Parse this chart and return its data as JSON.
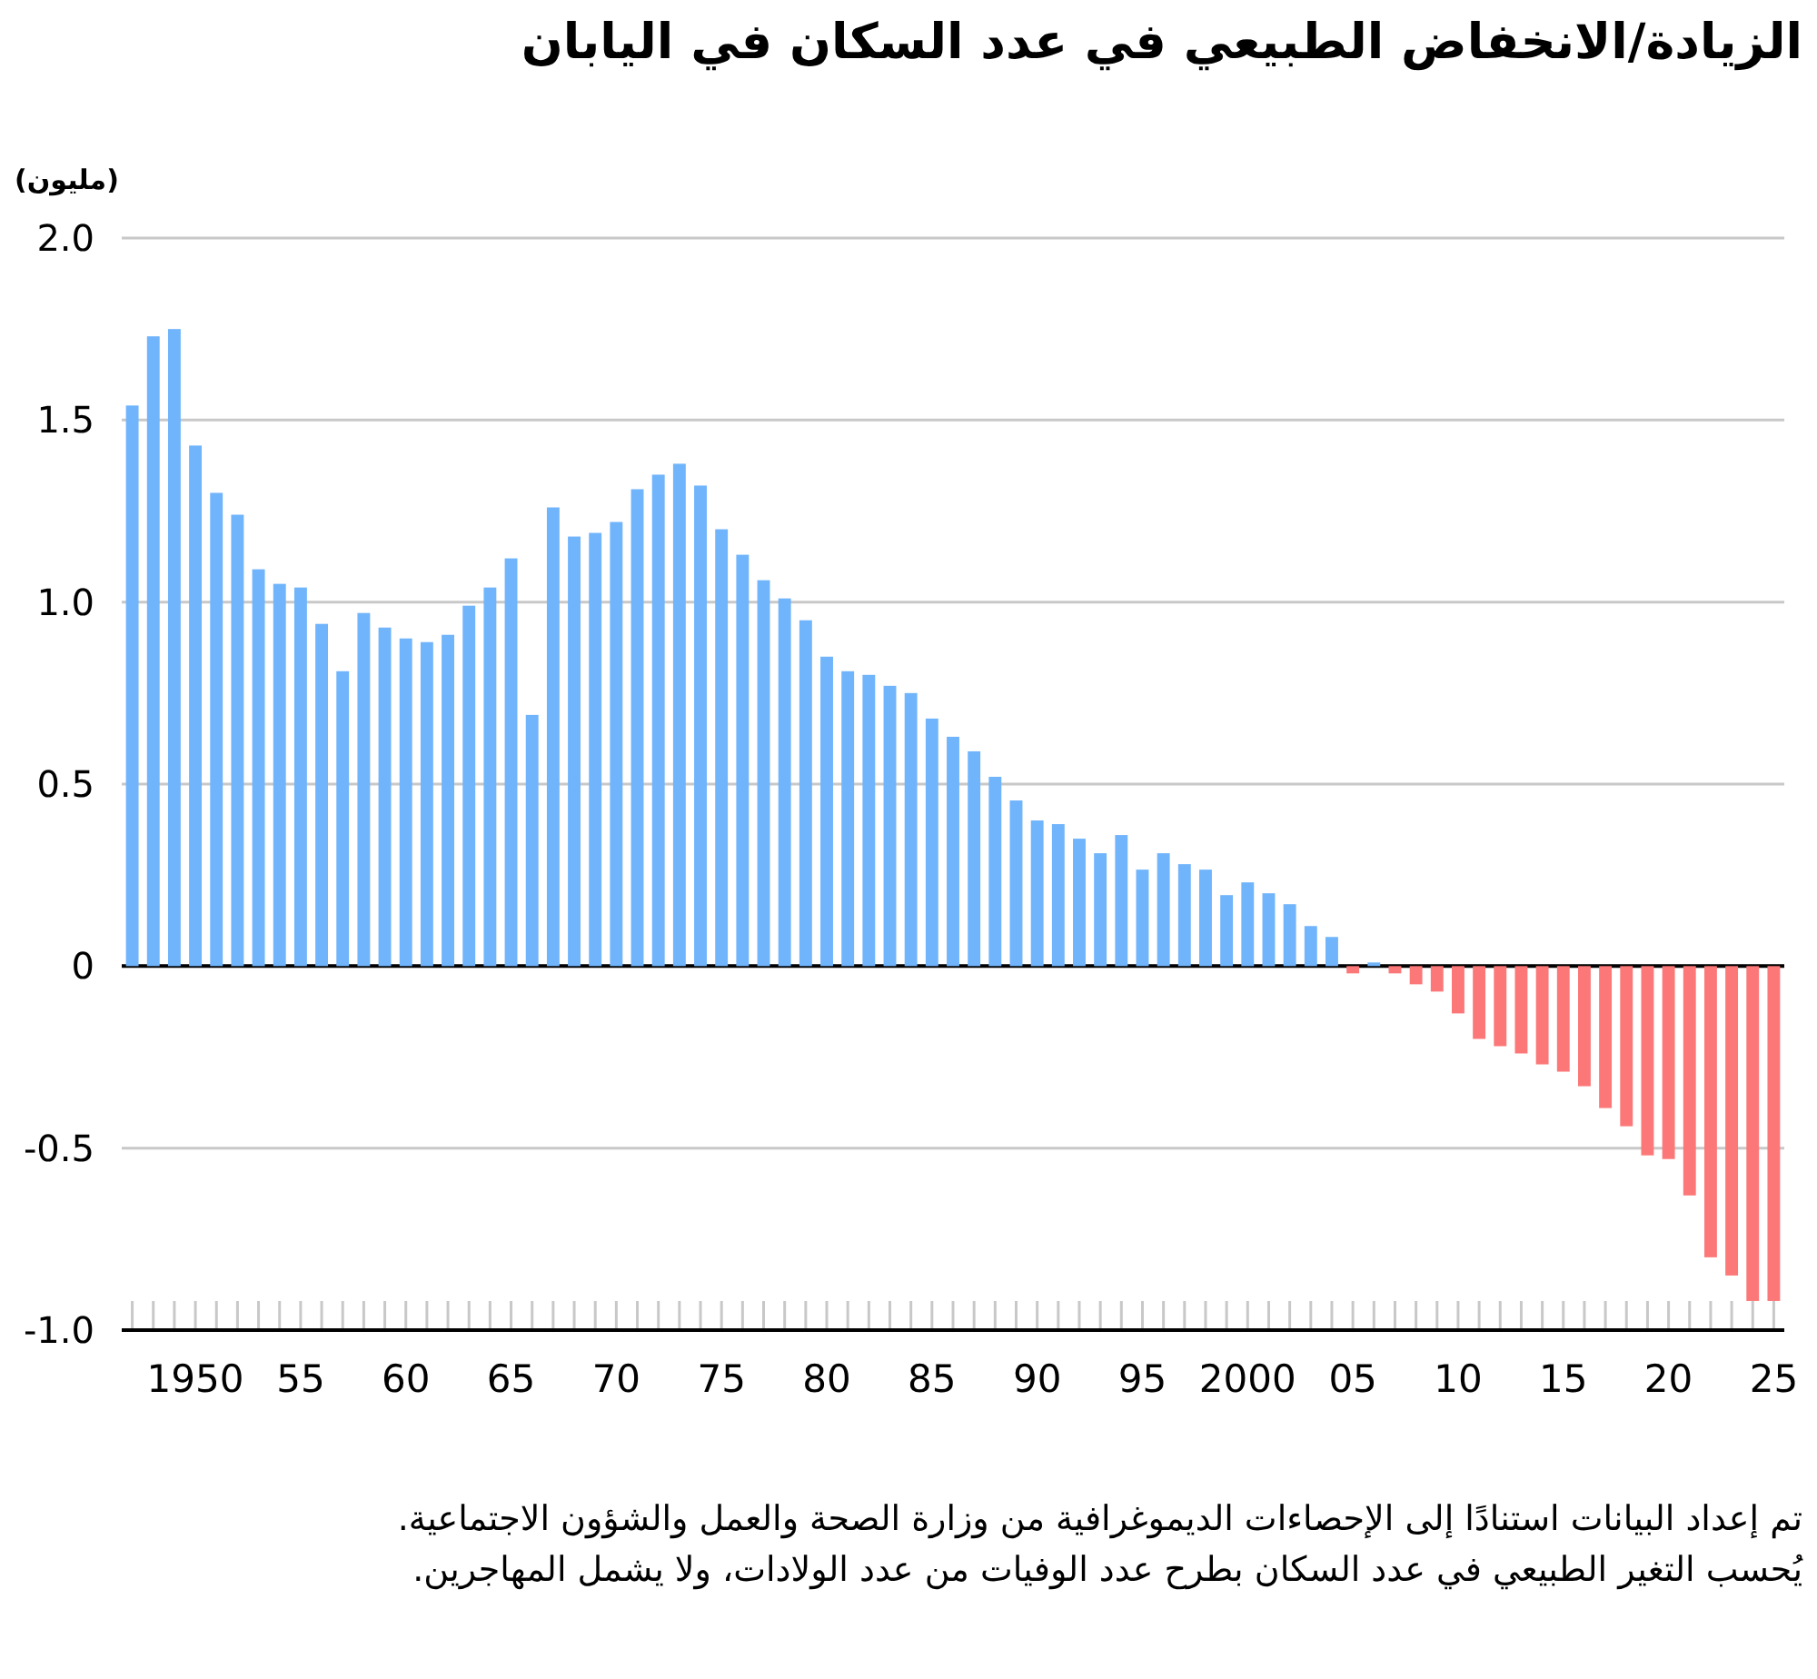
{
  "chart_data": {
    "type": "bar",
    "title": "الزيادة/الانخفاض الطبيعي في عدد السكان في اليابان",
    "ylabel": "(مليون)",
    "categories": [
      null,
      null,
      null,
      "1950",
      null,
      null,
      null,
      null,
      "55",
      null,
      null,
      null,
      null,
      "60",
      null,
      null,
      null,
      null,
      "65",
      null,
      null,
      null,
      null,
      "70",
      null,
      null,
      null,
      null,
      "75",
      null,
      null,
      null,
      null,
      "80",
      null,
      null,
      null,
      null,
      "85",
      null,
      null,
      null,
      null,
      "90",
      null,
      null,
      null,
      null,
      "95",
      null,
      null,
      null,
      null,
      "2000",
      null,
      null,
      null,
      null,
      "05",
      null,
      null,
      null,
      null,
      "10",
      null,
      null,
      null,
      null,
      "15",
      null,
      null,
      null,
      null,
      "20",
      null,
      null,
      null,
      null,
      "25"
    ],
    "values": [
      1.54,
      1.73,
      1.75,
      1.43,
      1.3,
      1.24,
      1.09,
      1.05,
      1.04,
      0.94,
      0.81,
      0.97,
      0.93,
      0.9,
      0.89,
      0.91,
      0.99,
      1.04,
      1.12,
      0.69,
      1.26,
      1.18,
      1.19,
      1.22,
      1.31,
      1.35,
      1.38,
      1.32,
      1.2,
      1.13,
      1.06,
      1.01,
      0.95,
      0.85,
      0.81,
      0.8,
      0.77,
      0.75,
      0.68,
      0.63,
      0.59,
      0.52,
      0.455,
      0.4,
      0.39,
      0.35,
      0.31,
      0.36,
      0.265,
      0.31,
      0.28,
      0.265,
      0.195,
      0.23,
      0.2,
      0.17,
      0.11,
      0.08,
      -0.02,
      0.01,
      -0.02,
      -0.05,
      -0.07,
      -0.13,
      -0.2,
      -0.22,
      -0.24,
      -0.27,
      -0.29,
      -0.33,
      -0.39,
      -0.44,
      -0.52,
      -0.53,
      -0.63,
      -0.8,
      -0.85,
      -0.92,
      -0.92
    ],
    "colors": [
      "#70b4fc",
      "#70b4fc",
      "#70b4fc",
      "#70b4fc",
      "#70b4fc",
      "#70b4fc",
      "#70b4fc",
      "#70b4fc",
      "#70b4fc",
      "#70b4fc",
      "#70b4fc",
      "#70b4fc",
      "#70b4fc",
      "#70b4fc",
      "#70b4fc",
      "#70b4fc",
      "#70b4fc",
      "#70b4fc",
      "#70b4fc",
      "#70b4fc",
      "#70b4fc",
      "#70b4fc",
      "#70b4fc",
      "#70b4fc",
      "#70b4fc",
      "#70b4fc",
      "#70b4fc",
      "#70b4fc",
      "#70b4fc",
      "#70b4fc",
      "#70b4fc",
      "#70b4fc",
      "#70b4fc",
      "#70b4fc",
      "#70b4fc",
      "#70b4fc",
      "#70b4fc",
      "#70b4fc",
      "#70b4fc",
      "#70b4fc",
      "#70b4fc",
      "#70b4fc",
      "#70b4fc",
      "#70b4fc",
      "#70b4fc",
      "#70b4fc",
      "#70b4fc",
      "#70b4fc",
      "#70b4fc",
      "#70b4fc",
      "#70b4fc",
      "#70b4fc",
      "#70b4fc",
      "#70b4fc",
      "#70b4fc",
      "#70b4fc",
      "#70b4fc",
      "#70b4fc",
      "#fc7878",
      "#70b4fc",
      "#fc7878",
      "#fc7878",
      "#fc7878",
      "#fc7878",
      "#fc7878",
      "#fc7878",
      "#fc7878",
      "#fc7878",
      "#fc7878",
      "#fc7878",
      "#fc7878",
      "#fc7878",
      "#fc7878",
      "#fc7878",
      "#fc7878",
      "#fc7878",
      "#fc7878",
      "#fc7878",
      "#fc7878"
    ],
    "ylim": [
      -1.0,
      2.0
    ],
    "yticks": [
      {
        "value": -1.0,
        "label": "-1.0"
      },
      {
        "value": -0.5,
        "label": "-0.5"
      },
      0,
      {
        "value": 0.5,
        "label": "0.5"
      },
      {
        "value": 1.0,
        "label": "1.0"
      },
      {
        "value": 1.5,
        "label": "1.5"
      },
      {
        "value": 2.0,
        "label": "2.0"
      }
    ],
    "grid": "y",
    "ref_lines": [
      {
        "axis": "y",
        "value": 0,
        "color": "#000000"
      }
    ],
    "annotations": [
      "تم إعداد البيانات استنادًا إلى الإحصاءات الديموغرافية من وزارة الصحة والعمل والشؤون الاجتماعية. يُحسب التغير الطبيعي في عدد السكان بطرح عدد الوفيات من عدد الولادات، ولا يشمل المهاجرين."
    ]
  }
}
